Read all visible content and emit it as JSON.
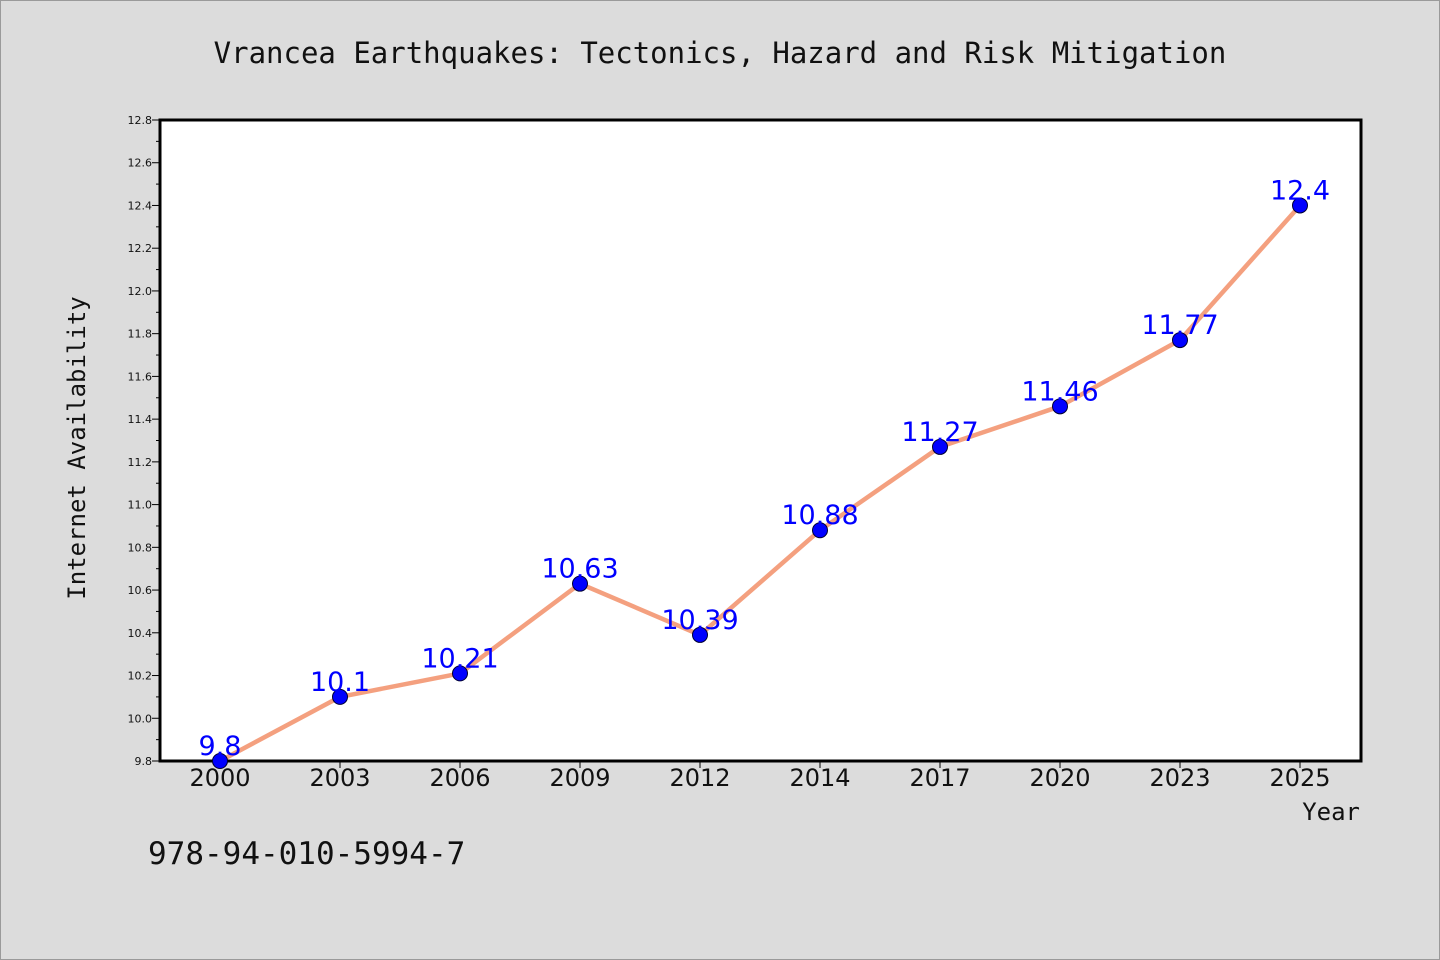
{
  "chart_data": {
    "type": "line",
    "title": "Vrancea Earthquakes: Tectonics, Hazard and Risk Mitigation",
    "xlabel": "Year",
    "ylabel": "Internet Availability",
    "categories": [
      "2000",
      "2003",
      "2006",
      "2009",
      "2012",
      "2014",
      "2017",
      "2020",
      "2023",
      "2025"
    ],
    "values": [
      9.8,
      10.1,
      10.21,
      10.63,
      10.39,
      10.88,
      11.27,
      11.46,
      11.77,
      12.4
    ],
    "data_labels": [
      "9.8",
      "10.1",
      "10.21",
      "10.63",
      "10.39",
      "10.88",
      "11.27",
      "11.46",
      "11.77",
      "12.4"
    ],
    "ylim": [
      9.8,
      12.8
    ],
    "yticks": [
      "9.8",
      "10.0",
      "10.2",
      "10.4",
      "10.6",
      "10.8",
      "11.0",
      "11.2",
      "11.4",
      "11.6",
      "11.8",
      "12.0",
      "12.2",
      "12.4",
      "12.6",
      "12.8"
    ],
    "grid": false,
    "line_color": "#f4a07f",
    "marker_color": "#0000ff",
    "label_color": "#0000ff"
  },
  "footer": {
    "isbn": "978-94-010-5994-7"
  }
}
